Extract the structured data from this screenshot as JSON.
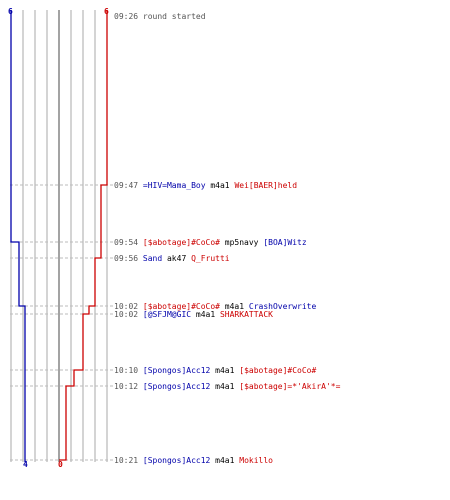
{
  "colors": {
    "blue": "#0000aa",
    "red": "#cc0000",
    "grid": "#aaaaaa",
    "text": "#000000",
    "time": "#555555"
  },
  "counts": {
    "blue_start": "6",
    "red_start": "6",
    "blue_end": "4",
    "red_end": "0"
  },
  "events": [
    {
      "time": "09:26",
      "parts": [
        {
          "text": "round started",
          "team": "neutral"
        }
      ]
    },
    {
      "time": "09:47",
      "parts": [
        {
          "text": "=HIV=Mama_Boy",
          "team": "blue"
        },
        {
          "text": " m4a1 ",
          "team": "weapon"
        },
        {
          "text": "Wei[BAER]held",
          "team": "red"
        }
      ]
    },
    {
      "time": "09:54",
      "parts": [
        {
          "text": "[$abotage]#CoCo#",
          "team": "red"
        },
        {
          "text": " mp5navy ",
          "team": "weapon"
        },
        {
          "text": "[BOA]Witz",
          "team": "blue"
        }
      ]
    },
    {
      "time": "09:56",
      "parts": [
        {
          "text": "Sand",
          "team": "blue"
        },
        {
          "text": " ak47 ",
          "team": "weapon"
        },
        {
          "text": "Q_Frutti",
          "team": "red"
        }
      ]
    },
    {
      "time": "10:02",
      "parts": [
        {
          "text": "[$abotage]#CoCo#",
          "team": "red"
        },
        {
          "text": " m4a1 ",
          "team": "weapon"
        },
        {
          "text": "CrashOverwrite",
          "team": "blue"
        }
      ]
    },
    {
      "time": "10:02",
      "parts": [
        {
          "text": "[@SFJM@GIC",
          "team": "blue"
        },
        {
          "text": " m4a1 ",
          "team": "weapon"
        },
        {
          "text": "SHARKATTACK",
          "team": "red"
        }
      ]
    },
    {
      "time": "10:10",
      "parts": [
        {
          "text": "[Spongos]Acc12",
          "team": "blue"
        },
        {
          "text": " m4a1 ",
          "team": "weapon"
        },
        {
          "text": "[$abotage]#CoCo#",
          "team": "red"
        }
      ]
    },
    {
      "time": "10:12",
      "parts": [
        {
          "text": "[Spongos]Acc12",
          "team": "blue"
        },
        {
          "text": " m4a1 ",
          "team": "weapon"
        },
        {
          "text": "[$abotage]=*'AkirA'*=",
          "team": "red"
        }
      ]
    },
    {
      "time": "10:21",
      "parts": [
        {
          "text": "[Spongos]Acc12",
          "team": "blue"
        },
        {
          "text": " m4a1 ",
          "team": "weapon"
        },
        {
          "text": "Mokillo",
          "team": "red"
        }
      ]
    }
  ]
}
